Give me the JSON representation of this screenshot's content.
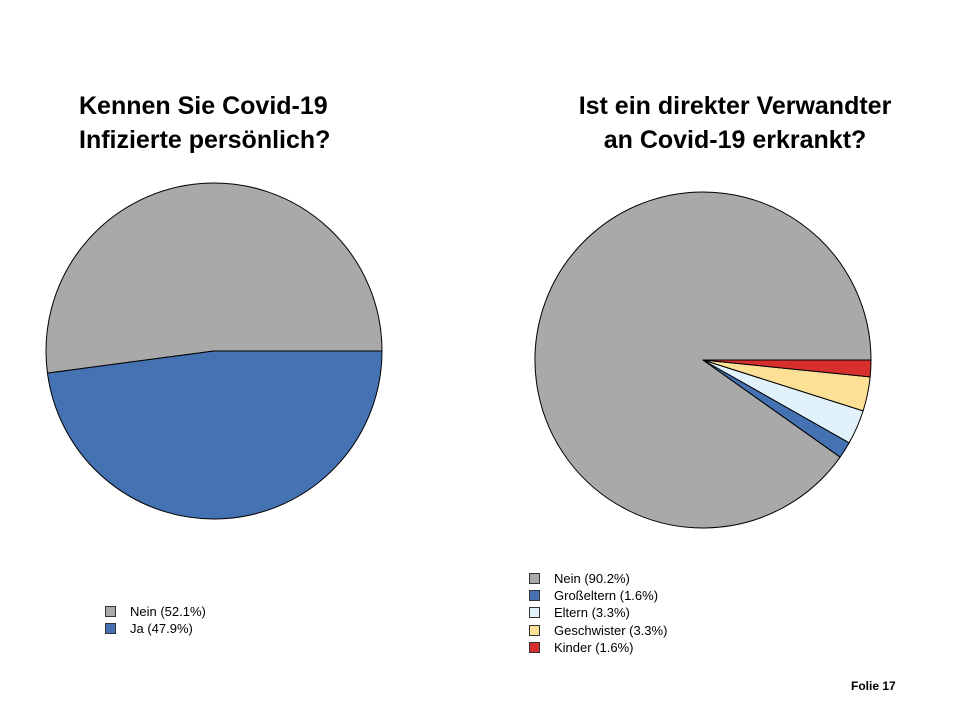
{
  "slide_number": "Folie 17",
  "chart_data": [
    {
      "type": "pie",
      "title_lines": [
        "Kennen Sie Covid-19",
        "Infizierte persönlich?"
      ],
      "slices": [
        {
          "legend": "Nein (52.1%)",
          "value": 52.1,
          "color": "#A9A9A9"
        },
        {
          "legend": "Ja (47.9%)",
          "value": 47.9,
          "color": "#4472B2"
        }
      ]
    },
    {
      "type": "pie",
      "title_lines": [
        "Ist ein direkter Verwandter",
        "an Covid-19 erkrankt?"
      ],
      "slices": [
        {
          "legend": "Nein (90.2%)",
          "value": 90.2,
          "color": "#A9A9A9"
        },
        {
          "legend": "Großeltern (1.6%)",
          "value": 1.6,
          "color": "#4472B2"
        },
        {
          "legend": "Eltern (3.3%)",
          "value": 3.3,
          "color": "#E2F2FA"
        },
        {
          "legend": "Geschwister (3.3%)",
          "value": 3.3,
          "color": "#FCE096"
        },
        {
          "legend": "Kinder (1.6%)",
          "value": 1.6,
          "color": "#D72E2E"
        }
      ]
    }
  ]
}
